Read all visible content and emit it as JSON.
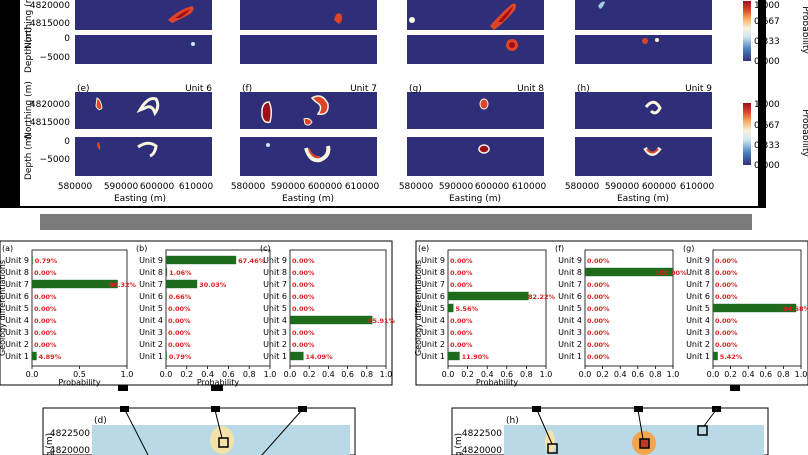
{
  "figure": {
    "map_panels": [
      {
        "id": "a",
        "label": "",
        "unit": ""
      },
      {
        "id": "b",
        "label": "",
        "unit": ""
      },
      {
        "id": "c",
        "label": "",
        "unit": ""
      },
      {
        "id": "d",
        "label": "",
        "unit": ""
      },
      {
        "id": "e",
        "label": "(e)",
        "unit": "Unit 6"
      },
      {
        "id": "f",
        "label": "(f)",
        "unit": "Unit 7"
      },
      {
        "id": "g",
        "label": "(g)",
        "unit": "Unit 8"
      },
      {
        "id": "h",
        "label": "(h)",
        "unit": "Unit 9"
      }
    ],
    "axes": {
      "northing_label": "Northing (m)",
      "depth_label": "Depth (m)",
      "easting_label": "Easting (m)",
      "northing_ticks": [
        "4820000",
        "4815000"
      ],
      "depth_ticks": [
        "0",
        "−5000"
      ],
      "easting_ticks": [
        "580000",
        "590000",
        "600000",
        "610000"
      ]
    },
    "colorbar": {
      "label": "Probability",
      "ticks": [
        "1.000",
        "0.667",
        "0.333",
        "0.000"
      ],
      "colors": [
        "#30307a",
        "#4a7fc0",
        "#9ecae1",
        "#f7f7f7",
        "#fdae61",
        "#e04428",
        "#9e0f1a"
      ]
    },
    "bottom_maps": [
      {
        "label": "(d)",
        "tick_top": "4822500",
        "tick_bottom": "4820000",
        "ylabel": "g (m)"
      },
      {
        "label": "(h)",
        "tick_top": "4822500",
        "tick_bottom": "4820000",
        "ylabel": "g (m)"
      }
    ]
  },
  "chart_data": [
    {
      "type": "bar",
      "title": "(a)",
      "ylabel": "Geology differentiations",
      "xlabel": "Probability",
      "categories": [
        "Unit 9",
        "Unit 8",
        "Unit 7",
        "Unit 6",
        "Unit 5",
        "Unit 4",
        "Unit 3",
        "Unit 2",
        "Unit 1"
      ],
      "values": [
        0.0079,
        0,
        0.9032,
        0,
        0,
        0,
        0,
        0,
        0.0489
      ],
      "labels": [
        "0.79%",
        "0.00%",
        "90.32%",
        "0.00%",
        "0.00%",
        "0.00%",
        "0.00%",
        "0.00%",
        "4.89%"
      ],
      "xlim": [
        0,
        1
      ],
      "xticks": [
        "0.0",
        "0.5",
        "1.0"
      ]
    },
    {
      "type": "bar",
      "title": "(b)",
      "ylabel": "",
      "xlabel": "Probability",
      "categories": [
        "Unit 9",
        "Unit 8",
        "Unit 7",
        "Unit 6",
        "Unit 5",
        "Unit 4",
        "Unit 3",
        "Unit 2",
        "Unit 1"
      ],
      "values": [
        0.6746,
        0.0106,
        0.3003,
        0.0066,
        0,
        0,
        0,
        0,
        0.0079
      ],
      "labels": [
        "67.46%",
        "1.06%",
        "30.03%",
        "0.66%",
        "0.00%",
        "0.00%",
        "0.00%",
        "0.00%",
        "0.79%"
      ],
      "xlim": [
        0,
        1
      ],
      "xticks": [
        "0.0",
        "0.2",
        "0.4",
        "0.6",
        "0.8",
        "1.0"
      ]
    },
    {
      "type": "bar",
      "title": "(c)",
      "ylabel": "",
      "xlabel": "",
      "categories": [
        "Unit 9",
        "Unit 8",
        "Unit 7",
        "Unit 6",
        "Unit 5",
        "Unit 4",
        "Unit 3",
        "Unit 2",
        "Unit 1"
      ],
      "values": [
        0,
        0,
        0,
        0,
        0,
        0.8591,
        0,
        0,
        0.1409
      ],
      "labels": [
        "0.00%",
        "0.00%",
        "0.00%",
        "0.00%",
        "0.00%",
        "85.91%",
        "0.00%",
        "0.00%",
        "14.09%"
      ],
      "xlim": [
        0,
        1
      ],
      "xticks": [
        "0.0",
        "0.2",
        "0.4",
        "0.6",
        "0.8",
        "1.0"
      ]
    },
    {
      "type": "bar",
      "title": "(e)",
      "ylabel": "Geology differentiations",
      "xlabel": "Probability",
      "categories": [
        "Unit 9",
        "Unit 8",
        "Unit 7",
        "Unit 6",
        "Unit 5",
        "Unit 4",
        "Unit 3",
        "Unit 2",
        "Unit 1"
      ],
      "values": [
        0,
        0,
        0,
        0.8222,
        0.0556,
        0,
        0,
        0,
        0.119
      ],
      "labels": [
        "0.00%",
        "0.00%",
        "0.00%",
        "82.22%",
        "5.56%",
        "0.00%",
        "0.00%",
        "0.00%",
        "11.90%"
      ],
      "xlim": [
        0,
        1
      ],
      "xticks": [
        "0.0",
        "0.2",
        "0.4",
        "0.6",
        "0.8",
        "1.0"
      ]
    },
    {
      "type": "bar",
      "title": "(f)",
      "ylabel": "",
      "xlabel": "",
      "categories": [
        "Unit 9",
        "Unit 8",
        "Unit 7",
        "Unit 6",
        "Unit 5",
        "Unit 4",
        "Unit 3",
        "Unit 2",
        "Unit 1"
      ],
      "values": [
        0,
        1.0,
        0,
        0,
        0,
        0,
        0,
        0,
        0
      ],
      "labels": [
        "0.00%",
        "100.00%",
        "0.00%",
        "0.00%",
        "0.00%",
        "0.00%",
        "0.00%",
        "0.00%",
        "0.00%"
      ],
      "xlim": [
        0,
        1
      ],
      "xticks": [
        "0.0",
        "0.2",
        "0.4",
        "0.6",
        "0.8",
        "1.0"
      ]
    },
    {
      "type": "bar",
      "title": "(g)",
      "ylabel": "",
      "xlabel": "",
      "categories": [
        "Unit 9",
        "Unit 8",
        "Unit 7",
        "Unit 6",
        "Unit 5",
        "Unit 4",
        "Unit 3",
        "Unit 2",
        "Unit 1"
      ],
      "values": [
        0,
        0,
        0,
        0,
        0.9458,
        0,
        0,
        0,
        0.0542
      ],
      "labels": [
        "0.00%",
        "0.00%",
        "0.00%",
        "0.00%",
        "94.58%",
        "0.00%",
        "0.00%",
        "0.00%",
        "5.42%"
      ],
      "xlim": [
        0,
        1
      ],
      "xticks": [
        "0.0",
        "0.2",
        "0.4",
        "0.6",
        "0.8",
        "1.0"
      ]
    }
  ]
}
